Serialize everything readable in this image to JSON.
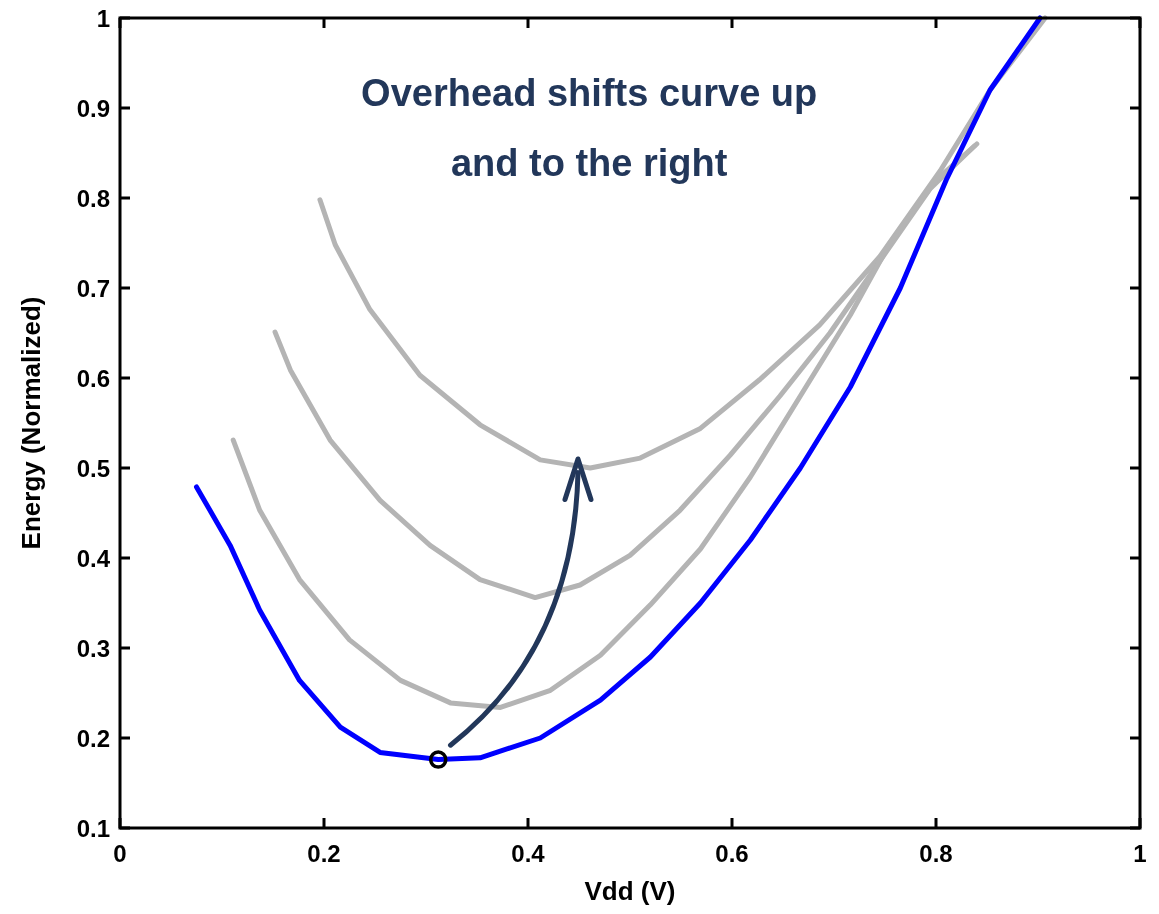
{
  "chart_data": {
    "type": "line",
    "xlabel": "Vdd (V)",
    "ylabel": "Energy (Normalized)",
    "xlim": [
      0,
      1
    ],
    "ylim": [
      0.1,
      1
    ],
    "xticks": [
      0,
      0.2,
      0.4,
      0.6,
      0.8,
      1
    ],
    "yticks": [
      0.1,
      0.2,
      0.3,
      0.4,
      0.5,
      0.6,
      0.7,
      0.8,
      0.9,
      1
    ],
    "annotations": [
      "Overhead shifts curve up and to the right"
    ],
    "series": [
      {
        "color": "#b4b4b4",
        "x": [
          0.196,
          0.211,
          0.245,
          0.294,
          0.353,
          0.412,
          0.461,
          0.51,
          0.569,
          0.627,
          0.686,
          0.745,
          0.804,
          0.853,
          0.907
        ],
        "values": [
          0.798,
          0.748,
          0.676,
          0.603,
          0.548,
          0.509,
          0.5,
          0.511,
          0.544,
          0.598,
          0.659,
          0.735,
          0.83,
          0.92,
          1.0
        ]
      },
      {
        "color": "#b4b4b4",
        "x": [
          0.152,
          0.167,
          0.206,
          0.255,
          0.304,
          0.353,
          0.407,
          0.451,
          0.5,
          0.549,
          0.598,
          0.647,
          0.696,
          0.745,
          0.794,
          0.838
        ],
        "values": [
          0.651,
          0.609,
          0.531,
          0.464,
          0.414,
          0.376,
          0.356,
          0.37,
          0.403,
          0.453,
          0.514,
          0.58,
          0.65,
          0.73,
          0.81,
          0.858
        ]
      },
      {
        "color": "#b4b4b4",
        "x": [
          0.111,
          0.137,
          0.176,
          0.225,
          0.275,
          0.324,
          0.373,
          0.422,
          0.471,
          0.52,
          0.569,
          0.618,
          0.667,
          0.716,
          0.755,
          0.8,
          0.84
        ],
        "values": [
          0.531,
          0.453,
          0.376,
          0.309,
          0.264,
          0.239,
          0.234,
          0.253,
          0.292,
          0.348,
          0.41,
          0.49,
          0.58,
          0.67,
          0.75,
          0.82,
          0.86
        ]
      },
      {
        "color": "#0000ff",
        "x": [
          0.075,
          0.108,
          0.137,
          0.176,
          0.216,
          0.255,
          0.312,
          0.353,
          0.412,
          0.471,
          0.52,
          0.569,
          0.618,
          0.667,
          0.716,
          0.765,
          0.81,
          0.853,
          0.902
        ],
        "values": [
          0.479,
          0.414,
          0.342,
          0.264,
          0.212,
          0.184,
          0.176,
          0.178,
          0.2,
          0.242,
          0.29,
          0.35,
          0.42,
          0.5,
          0.59,
          0.7,
          0.82,
          0.92,
          1.0
        ]
      },
      {
        "type": "scatter",
        "marker": "circle",
        "color": "#000000",
        "x": [
          0.312
        ],
        "values": [
          0.176
        ]
      }
    ]
  }
}
